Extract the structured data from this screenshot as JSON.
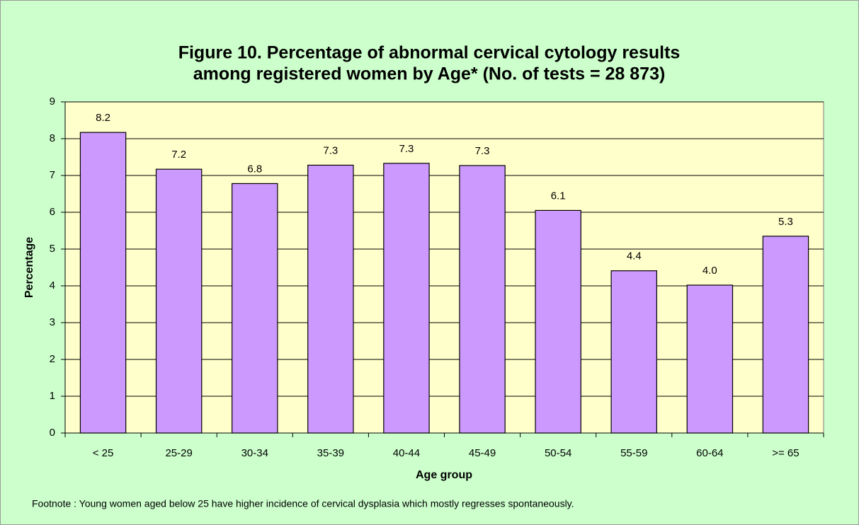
{
  "chart_data": {
    "type": "bar",
    "title": [
      "Figure 10.   Percentage of abnormal cervical cytology results",
      "among registered women by Age* (No. of tests = 28 873)"
    ],
    "x_label": "Age group",
    "y_label": "Percentage",
    "footnote": "Footnote : Young women aged below 25 have higher incidence of cervical dysplasia which mostly regresses spontaneously.",
    "categories": [
      "< 25",
      "25-29",
      "30-34",
      "35-39",
      "40-44",
      "45-49",
      "50-54",
      "55-59",
      "60-64",
      ">= 65"
    ],
    "values": [
      8.17,
      7.17,
      6.78,
      7.28,
      7.33,
      7.27,
      6.05,
      4.41,
      4.02,
      5.35
    ],
    "value_labels": [
      "8.2",
      "7.2",
      "6.8",
      "7.3",
      "7.3",
      "7.3",
      "6.1",
      "4.4",
      "4.0",
      "5.3"
    ],
    "color": "#cc99ff",
    "ylim": [
      0,
      9
    ],
    "yticks": [
      0,
      1,
      2,
      3,
      4,
      5,
      6,
      7,
      8,
      9
    ],
    "grid": true
  }
}
